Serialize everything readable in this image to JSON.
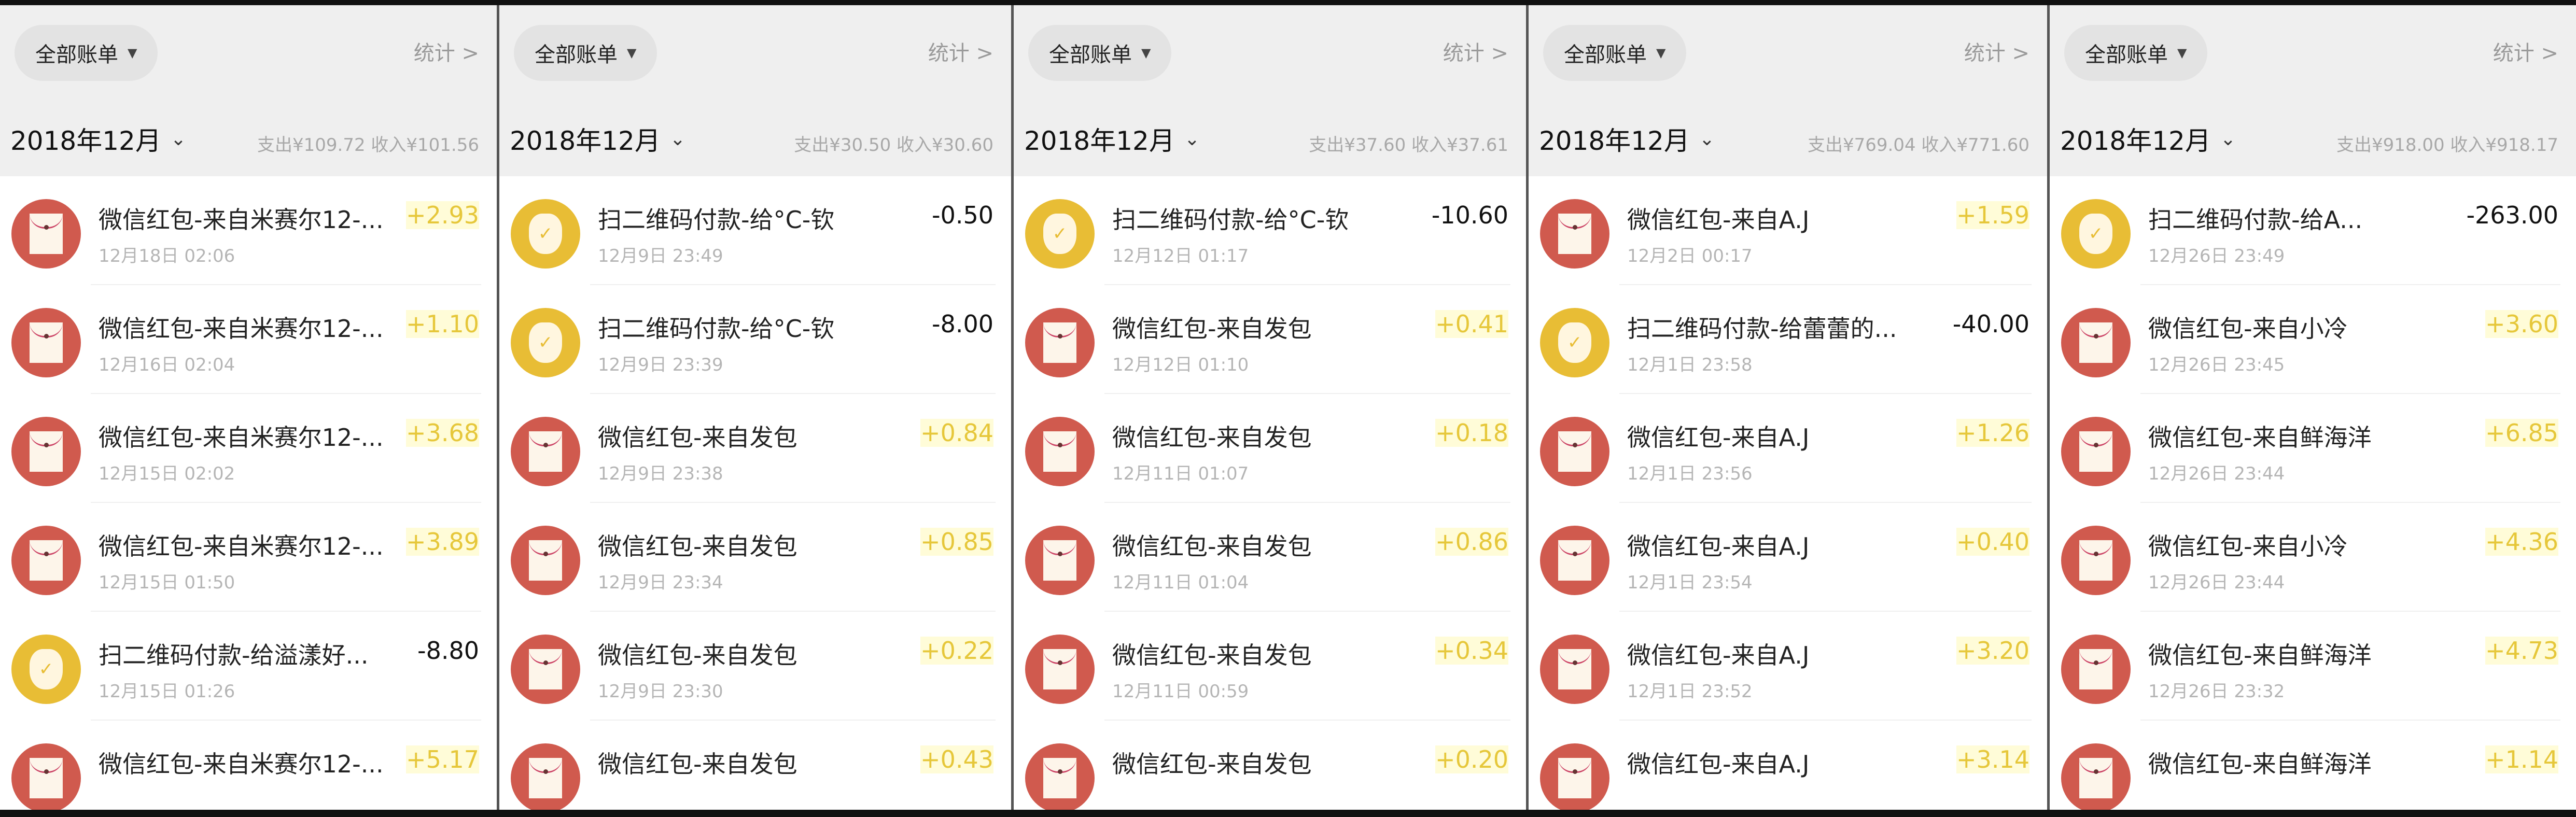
{
  "colors": {
    "income": "#e6c73a",
    "expense": "#111111",
    "redpacket_icon": "#d05a4e",
    "payment_icon": "#e8bd35"
  },
  "panels": [
    {
      "filter": "全部账单",
      "stats": "统计 >",
      "month": "2018年12月",
      "summary": "支出¥109.72 收入¥101.56",
      "rows": [
        {
          "icon": "red-packet-icon",
          "title": "微信红包-来自米赛尔12-...",
          "date": "12月18日 02:06",
          "amount": "+2.93",
          "type": "income"
        },
        {
          "icon": "red-packet-icon",
          "title": "微信红包-来自米赛尔12-...",
          "date": "12月16日 02:04",
          "amount": "+1.10",
          "type": "income"
        },
        {
          "icon": "red-packet-icon",
          "title": "微信红包-来自米赛尔12-...",
          "date": "12月15日 02:02",
          "amount": "+3.68",
          "type": "income"
        },
        {
          "icon": "red-packet-icon",
          "title": "微信红包-来自米赛尔12-...",
          "date": "12月15日 01:50",
          "amount": "+3.89",
          "type": "income"
        },
        {
          "icon": "money-bag-icon",
          "title": "扫二维码付款-给溢漾好...",
          "date": "12月15日 01:26",
          "amount": "-8.80",
          "type": "expense"
        },
        {
          "icon": "red-packet-icon",
          "title": "微信红包-来自米赛尔12-...",
          "date": "",
          "amount": "+5.17",
          "type": "income"
        }
      ]
    },
    {
      "filter": "全部账单",
      "stats": "统计 >",
      "month": "2018年12月",
      "summary": "支出¥30.50 收入¥30.60",
      "rows": [
        {
          "icon": "money-bag-icon",
          "title": "扫二维码付款-给°C-钦",
          "date": "12月9日 23:49",
          "amount": "-0.50",
          "type": "expense"
        },
        {
          "icon": "money-bag-icon",
          "title": "扫二维码付款-给°C-钦",
          "date": "12月9日 23:39",
          "amount": "-8.00",
          "type": "expense"
        },
        {
          "icon": "red-packet-icon",
          "title": "微信红包-来自发包",
          "date": "12月9日 23:38",
          "amount": "+0.84",
          "type": "income"
        },
        {
          "icon": "red-packet-icon",
          "title": "微信红包-来自发包",
          "date": "12月9日 23:34",
          "amount": "+0.85",
          "type": "income"
        },
        {
          "icon": "red-packet-icon",
          "title": "微信红包-来自发包",
          "date": "12月9日 23:30",
          "amount": "+0.22",
          "type": "income"
        },
        {
          "icon": "red-packet-icon",
          "title": "微信红包-来自发包",
          "date": "",
          "amount": "+0.43",
          "type": "income"
        }
      ]
    },
    {
      "filter": "全部账单",
      "stats": "统计 >",
      "month": "2018年12月",
      "summary": "支出¥37.60 收入¥37.61",
      "rows": [
        {
          "icon": "money-bag-icon",
          "title": "扫二维码付款-给°C-钦",
          "date": "12月12日 01:17",
          "amount": "-10.60",
          "type": "expense"
        },
        {
          "icon": "red-packet-icon",
          "title": "微信红包-来自发包",
          "date": "12月12日 01:10",
          "amount": "+0.41",
          "type": "income"
        },
        {
          "icon": "red-packet-icon",
          "title": "微信红包-来自发包",
          "date": "12月11日 01:07",
          "amount": "+0.18",
          "type": "income"
        },
        {
          "icon": "red-packet-icon",
          "title": "微信红包-来自发包",
          "date": "12月11日 01:04",
          "amount": "+0.86",
          "type": "income"
        },
        {
          "icon": "red-packet-icon",
          "title": "微信红包-来自发包",
          "date": "12月11日 00:59",
          "amount": "+0.34",
          "type": "income"
        },
        {
          "icon": "red-packet-icon",
          "title": "微信红包-来自发包",
          "date": "",
          "amount": "+0.20",
          "type": "income"
        }
      ]
    },
    {
      "filter": "全部账单",
      "stats": "统计 >",
      "month": "2018年12月",
      "summary": "支出¥769.04 收入¥771.60",
      "rows": [
        {
          "icon": "red-packet-icon",
          "title": "微信红包-来自A.J",
          "date": "12月2日 00:17",
          "amount": "+1.59",
          "type": "income"
        },
        {
          "icon": "money-bag-icon",
          "title": "扫二维码付款-给蕾蕾的...",
          "date": "12月1日 23:58",
          "amount": "-40.00",
          "type": "expense"
        },
        {
          "icon": "red-packet-icon",
          "title": "微信红包-来自A.J",
          "date": "12月1日 23:56",
          "amount": "+1.26",
          "type": "income"
        },
        {
          "icon": "red-packet-icon",
          "title": "微信红包-来自A.J",
          "date": "12月1日 23:54",
          "amount": "+0.40",
          "type": "income"
        },
        {
          "icon": "red-packet-icon",
          "title": "微信红包-来自A.J",
          "date": "12月1日 23:52",
          "amount": "+3.20",
          "type": "income"
        },
        {
          "icon": "red-packet-icon",
          "title": "微信红包-来自A.J",
          "date": "",
          "amount": "+3.14",
          "type": "income"
        }
      ]
    },
    {
      "filter": "全部账单",
      "stats": "统计 >",
      "month": "2018年12月",
      "summary": "支出¥918.00 收入¥918.17",
      "rows": [
        {
          "icon": "money-bag-icon",
          "title": "扫二维码付款-给A...",
          "date": "12月26日 23:49",
          "amount": "-263.00",
          "type": "expense"
        },
        {
          "icon": "red-packet-icon",
          "title": "微信红包-来自小冷",
          "date": "12月26日 23:45",
          "amount": "+3.60",
          "type": "income"
        },
        {
          "icon": "red-packet-icon",
          "title": "微信红包-来自鲜海洋",
          "date": "12月26日 23:44",
          "amount": "+6.85",
          "type": "income"
        },
        {
          "icon": "red-packet-icon",
          "title": "微信红包-来自小冷",
          "date": "12月26日 23:44",
          "amount": "+4.36",
          "type": "income"
        },
        {
          "icon": "red-packet-icon",
          "title": "微信红包-来自鲜海洋",
          "date": "12月26日 23:32",
          "amount": "+4.73",
          "type": "income"
        },
        {
          "icon": "red-packet-icon",
          "title": "微信红包-来自鲜海洋",
          "date": "",
          "amount": "+1.14",
          "type": "income"
        }
      ]
    }
  ]
}
